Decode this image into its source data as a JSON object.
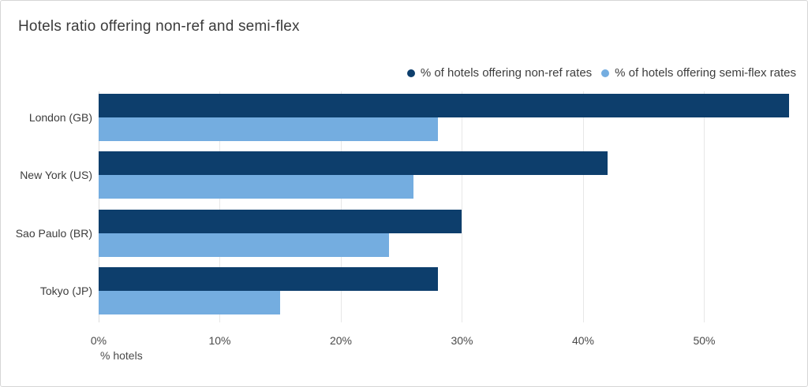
{
  "chart_data": {
    "type": "bar",
    "orientation": "horizontal",
    "title": "Hotels ratio offering non-ref and semi-flex",
    "categories": [
      "London (GB)",
      "New York (US)",
      "Sao Paulo (BR)",
      "Tokyo (JP)"
    ],
    "series": [
      {
        "name": "% of hotels offering non-ref rates",
        "color": "#0d3e6c",
        "values": [
          57,
          42,
          30,
          28
        ]
      },
      {
        "name": "% of hotels offering semi-flex rates",
        "color": "#74ade0",
        "values": [
          28,
          26,
          24,
          15
        ]
      }
    ],
    "xlabel": "% hotels",
    "x_ticks": [
      "0%",
      "10%",
      "20%",
      "30%",
      "40%",
      "50%"
    ],
    "x_tick_values": [
      0,
      10,
      20,
      30,
      40,
      50
    ],
    "xlim": [
      0,
      57.2
    ],
    "grid": true,
    "legend_position": "top-right"
  },
  "colors": {
    "grid": "#e7e7e7",
    "axis_text": "#4a4a4a",
    "title_text": "#3b3b3b",
    "card_border": "#d6d6d6"
  }
}
